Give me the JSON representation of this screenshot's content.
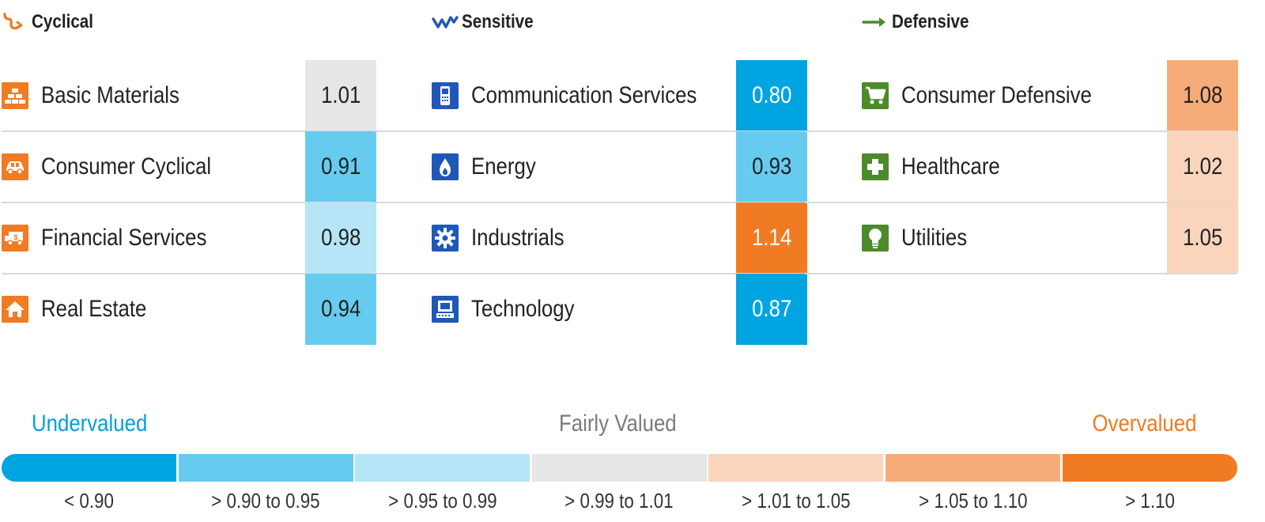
{
  "chart_data": {
    "type": "table",
    "groups": [
      {
        "title": "Cyclical",
        "icon": "cyclical-trend-icon",
        "color": "#f07b22",
        "sectors": [
          {
            "name": "Basic Materials",
            "value": "1.01",
            "icon": "gold-bars-icon"
          },
          {
            "name": "Consumer Cyclical",
            "value": "0.91",
            "icon": "car-icon"
          },
          {
            "name": "Financial Services",
            "value": "0.98",
            "icon": "bank-truck-icon"
          },
          {
            "name": "Real Estate",
            "value": "0.94",
            "icon": "house-icon"
          }
        ]
      },
      {
        "title": "Sensitive",
        "icon": "sensitive-trend-icon",
        "color": "#1f58b8",
        "sectors": [
          {
            "name": "Communication Services",
            "value": "0.80",
            "icon": "phone-icon"
          },
          {
            "name": "Energy",
            "value": "0.93",
            "icon": "flame-icon"
          },
          {
            "name": "Industrials",
            "value": "1.14",
            "icon": "gear-icon"
          },
          {
            "name": "Technology",
            "value": "0.87",
            "icon": "computer-icon"
          }
        ]
      },
      {
        "title": "Defensive",
        "icon": "defensive-arrow-icon",
        "color": "#4c8a2b",
        "sectors": [
          {
            "name": "Consumer Defensive",
            "value": "1.08",
            "icon": "shopping-cart-icon"
          },
          {
            "name": "Healthcare",
            "value": "1.02",
            "icon": "medical-cross-icon"
          },
          {
            "name": "Utilities",
            "value": "1.05",
            "icon": "light-bulb-icon"
          }
        ]
      }
    ],
    "scale": {
      "labels": {
        "low": "Undervalued",
        "mid": "Fairly Valued",
        "high": "Overvalued"
      },
      "label_colors": {
        "low": "#009fdf",
        "mid": "#7a7a7a",
        "high": "#f07b22"
      },
      "bins": [
        {
          "label": "< 0.90",
          "min": null,
          "max": 0.9,
          "color": "#00a4e0"
        },
        {
          "label": "> 0.90 to 0.95",
          "min": 0.9,
          "max": 0.95,
          "color": "#66cbef"
        },
        {
          "label": "> 0.95 to 0.99",
          "min": 0.95,
          "max": 0.99,
          "color": "#b5e5f7"
        },
        {
          "label": "> 0.99 to 1.01",
          "min": 0.99,
          "max": 1.01,
          "color": "#e6e6e6"
        },
        {
          "label": "> 1.01 to 1.05",
          "min": 1.01,
          "max": 1.05,
          "color": "#fad5bb"
        },
        {
          "label": "> 1.05 to 1.10",
          "min": 1.05,
          "max": 1.1,
          "color": "#f6ac78"
        },
        {
          "label": "> 1.10",
          "min": 1.1,
          "max": null,
          "color": "#f07b22"
        }
      ]
    }
  }
}
